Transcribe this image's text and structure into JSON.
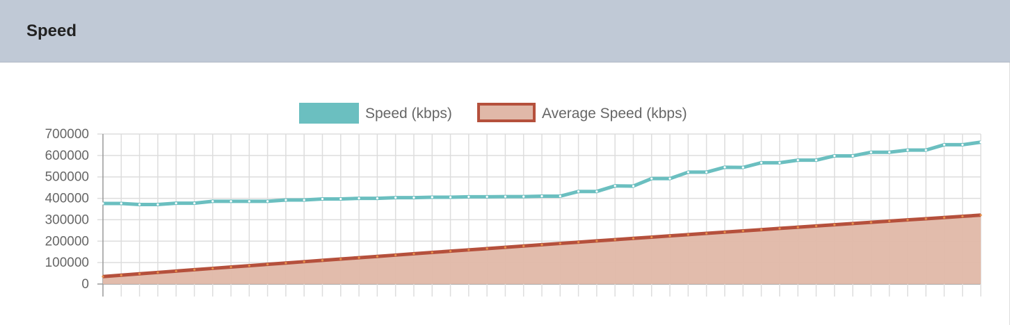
{
  "header": {
    "title": "Speed"
  },
  "chart_data": {
    "type": "line",
    "title": "",
    "xlabel": "",
    "ylabel": "",
    "ylim": [
      0,
      700000
    ],
    "yticks": [
      "700000",
      "600000",
      "500000",
      "400000",
      "300000",
      "200000",
      "100000",
      "0"
    ],
    "grid": true,
    "legend_placement": "top",
    "point_count": 49,
    "series": [
      {
        "name": "Speed (kbps)",
        "color": "#6bbfc0",
        "fill": false,
        "values": [
          376000,
          376000,
          371000,
          371000,
          377000,
          377000,
          386000,
          386000,
          386000,
          386000,
          392000,
          392000,
          397000,
          397000,
          400000,
          400000,
          403000,
          403000,
          405000,
          405000,
          407000,
          407000,
          408000,
          408000,
          410000,
          410000,
          432000,
          432000,
          458000,
          457000,
          492000,
          492000,
          522000,
          522000,
          545000,
          544000,
          566000,
          566000,
          578000,
          578000,
          598000,
          598000,
          615000,
          615000,
          625000,
          625000,
          650000,
          650000,
          662000
        ]
      },
      {
        "name": "Average Speed (kbps)",
        "color": "#b5503c",
        "fillColor": "#e0b8a8",
        "fill": true,
        "values": [
          35000,
          41400,
          47800,
          54100,
          60500,
          66800,
          73100,
          79400,
          85600,
          91900,
          98100,
          104300,
          110500,
          116700,
          122800,
          129000,
          135100,
          141200,
          147300,
          153400,
          159400,
          165400,
          171400,
          177400,
          183400,
          189400,
          195300,
          201200,
          207100,
          213000,
          218900,
          224800,
          230600,
          236400,
          242200,
          248000,
          253700,
          259500,
          265200,
          270900,
          276600,
          282300,
          287900,
          293600,
          299200,
          304800,
          310400,
          315900,
          321500
        ]
      }
    ]
  }
}
